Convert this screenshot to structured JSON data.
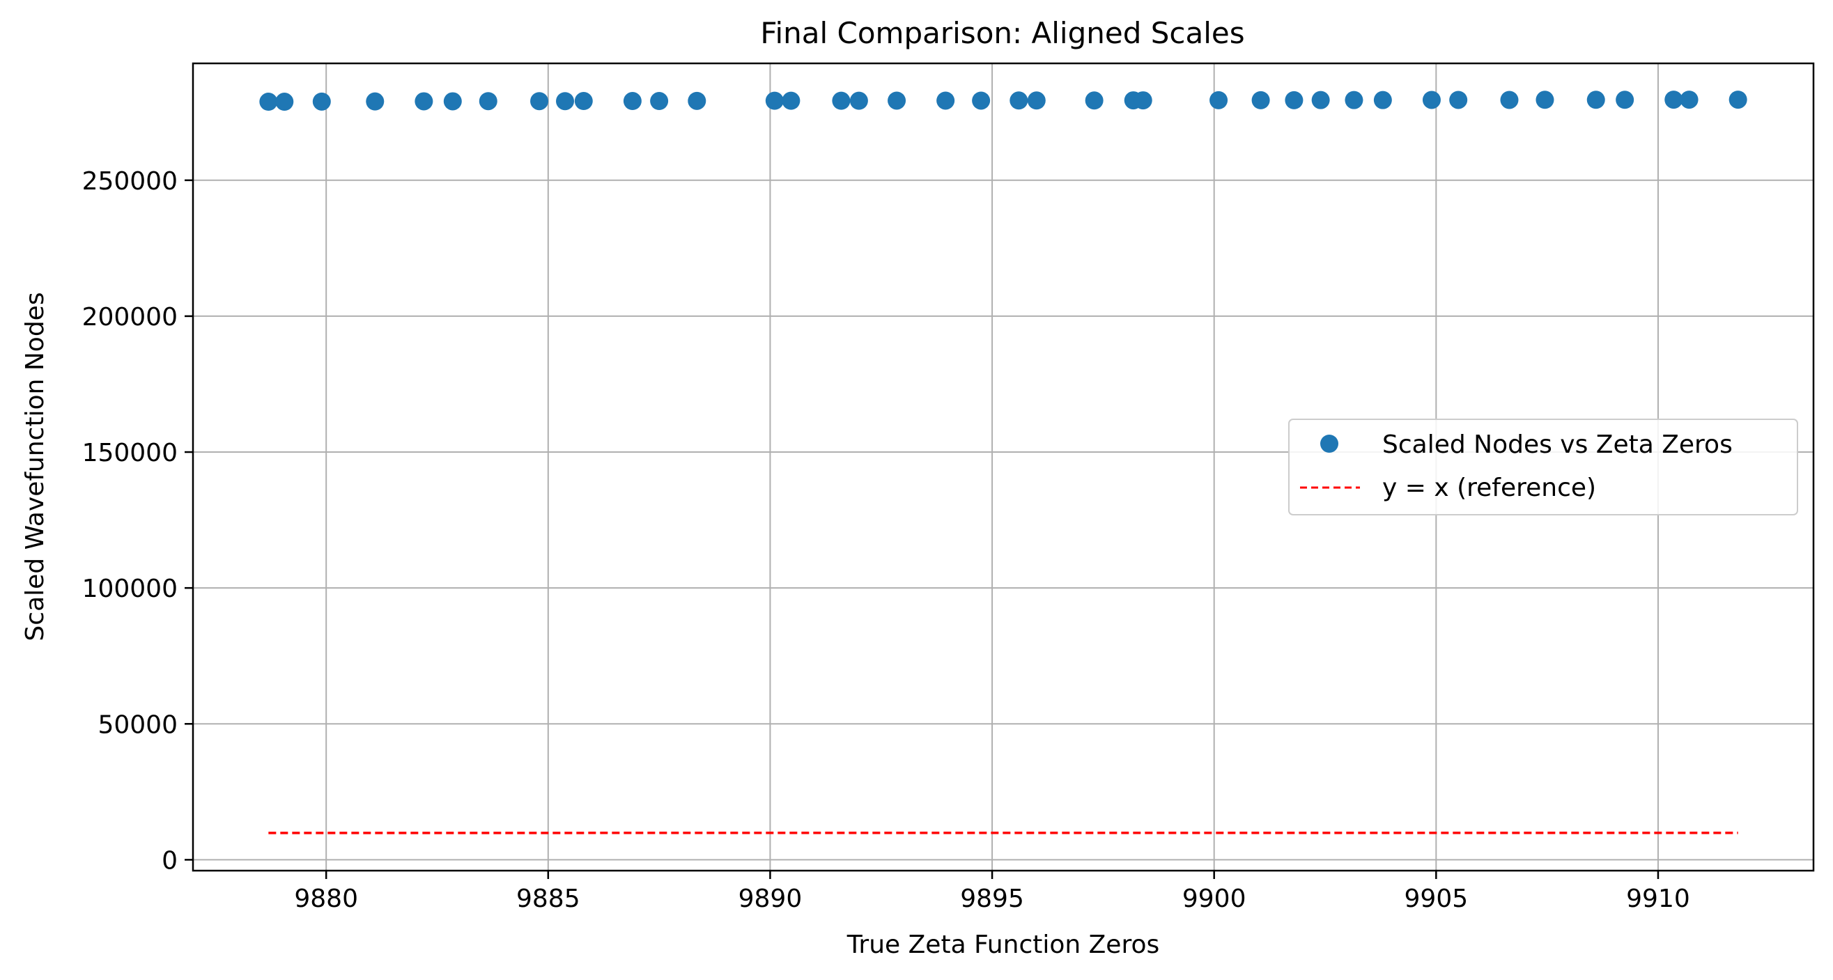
{
  "chart_data": {
    "type": "scatter",
    "title": "Final Comparison: Aligned Scales",
    "xlabel": "True Zeta Function Zeros",
    "ylabel": "Scaled Wavefunction Nodes",
    "xlim": [
      9877,
      9913.5
    ],
    "ylim": [
      -4000,
      293000
    ],
    "xticks": [
      9880,
      9885,
      9890,
      9895,
      9900,
      9905,
      9910
    ],
    "yticks": [
      0,
      50000,
      100000,
      150000,
      200000,
      250000
    ],
    "grid": true,
    "legend_position": "center-right",
    "series": [
      {
        "name": "Scaled Nodes vs Zeta Zeros",
        "kind": "scatter",
        "marker": "circle",
        "color": "#1f77b4",
        "x": [
          9878.7,
          9879.06,
          9879.9,
          9881.1,
          9882.2,
          9882.85,
          9883.65,
          9884.8,
          9885.38,
          9885.8,
          9886.9,
          9887.5,
          9888.35,
          9890.1,
          9890.47,
          9891.6,
          9892.0,
          9892.85,
          9893.95,
          9894.75,
          9895.6,
          9896.0,
          9897.3,
          9898.18,
          9898.4,
          9900.1,
          9901.05,
          9901.8,
          9902.4,
          9903.15,
          9903.8,
          9904.9,
          9905.5,
          9906.65,
          9907.45,
          9908.6,
          9909.25,
          9910.35,
          9910.7,
          9911.8
        ],
        "y": [
          278900,
          278900,
          278950,
          279000,
          279050,
          279050,
          279100,
          279100,
          279100,
          279150,
          279150,
          279150,
          279200,
          279250,
          279250,
          279250,
          279250,
          279300,
          279300,
          279300,
          279350,
          279350,
          279350,
          279400,
          279400,
          279450,
          279450,
          279450,
          279500,
          279500,
          279500,
          279550,
          279550,
          279550,
          279600,
          279600,
          279600,
          279650,
          279650,
          279650
        ]
      },
      {
        "name": "y = x (reference)",
        "kind": "line",
        "linestyle": "dashed",
        "color": "#ff0000",
        "x": [
          9878.7,
          9911.8
        ],
        "y": [
          9878.7,
          9911.8
        ]
      }
    ]
  }
}
